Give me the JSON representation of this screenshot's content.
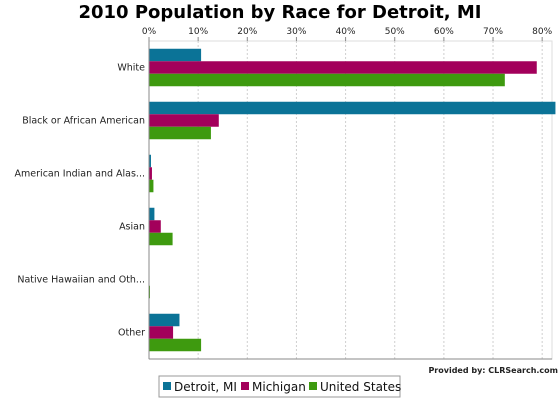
{
  "chart_data": {
    "type": "bar",
    "orientation": "horizontal",
    "title": "2010 Population by Race for Detroit, MI",
    "categories": [
      "White",
      "Black or African American",
      "American Indian and Alas...",
      "Asian",
      "Native Hawaiian and Oth...",
      "Other"
    ],
    "series": [
      {
        "name": "Detroit, MI",
        "color": "#0b7397",
        "values": [
          10.6,
          82.7,
          0.4,
          1.1,
          0.0,
          6.2
        ]
      },
      {
        "name": "Michigan",
        "color": "#a3005b",
        "values": [
          78.9,
          14.2,
          0.6,
          2.4,
          0.0,
          4.9
        ]
      },
      {
        "name": "United States",
        "color": "#3e9a0f",
        "values": [
          72.4,
          12.6,
          0.9,
          4.8,
          0.2,
          10.6
        ]
      }
    ],
    "xlim": [
      0,
      82
    ],
    "ticks": [
      "0%",
      "10%",
      "20%",
      "30%",
      "40%",
      "50%",
      "60%",
      "70%",
      "80%"
    ],
    "tick_values": [
      0,
      10,
      20,
      30,
      40,
      50,
      60,
      70,
      80
    ],
    "grid": true,
    "legend_position": "bottom"
  },
  "credit": "Provided by: CLRSearch.com"
}
